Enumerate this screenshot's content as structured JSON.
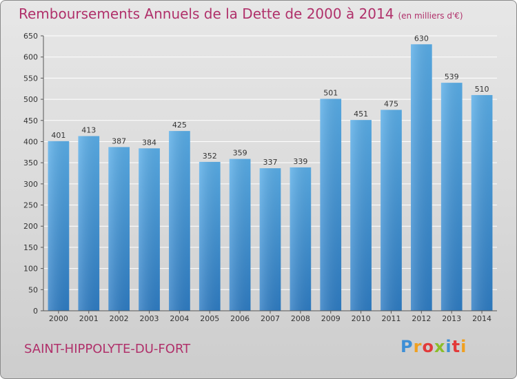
{
  "header": {
    "title": "Remboursements Annuels de la Dette de 2000 à 2014",
    "unit_note": "(en milliers d'€)"
  },
  "footer": {
    "commune": "SAINT-HIPPOLYTE-DU-FORT",
    "logo": {
      "letters": [
        "P",
        "r",
        "o",
        "x",
        "i",
        "t",
        "i"
      ],
      "colors": [
        "#3d8fd6",
        "#f0a020",
        "#e23a3a",
        "#8bbd2a",
        "#3d8fd6",
        "#e23a3a",
        "#f0a020"
      ]
    }
  },
  "colors": {
    "title": "#b0306a",
    "bar_light": "#5aaee8",
    "bar_dark": "#2f7dc4",
    "grid": "#ffffff",
    "axis": "#555555"
  },
  "chart_data": {
    "type": "bar",
    "title": "Remboursements Annuels de la Dette de 2000 à 2014",
    "subtitle": "(en milliers d'€)",
    "xlabel": "",
    "ylabel": "",
    "categories": [
      "2000",
      "2001",
      "2002",
      "2003",
      "2004",
      "2005",
      "2006",
      "2007",
      "2008",
      "2009",
      "2010",
      "2011",
      "2012",
      "2013",
      "2014"
    ],
    "values": [
      401,
      413,
      387,
      384,
      425,
      352,
      359,
      337,
      339,
      501,
      451,
      475,
      630,
      539,
      510
    ],
    "ylim": [
      0,
      650
    ],
    "yticks": [
      0,
      50,
      100,
      150,
      200,
      250,
      300,
      350,
      400,
      450,
      500,
      550,
      600,
      650
    ],
    "grid": "horizontal",
    "data_labels": true
  }
}
